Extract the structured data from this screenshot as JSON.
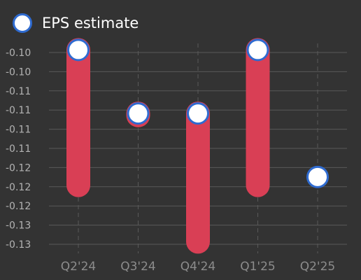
{
  "legend": {
    "label": "EPS estimate"
  },
  "colors": {
    "background": "#333333",
    "bar": "#d93f55",
    "marker_border": "#2f6bd0",
    "marker_fill": "#ffffff",
    "grid": "#595959"
  },
  "chart_data": {
    "type": "bar",
    "series": [
      {
        "name": "EPS estimate",
        "role": "estimate marker"
      }
    ],
    "categories": [
      "Q2'24",
      "Q3'24",
      "Q4'24",
      "Q1'25",
      "Q2'25"
    ],
    "estimates": [
      -0.1,
      -0.11,
      -0.11,
      -0.1,
      -0.12
    ],
    "actuals": [
      -0.1213,
      -0.1103,
      -0.1302,
      -0.1213,
      null
    ],
    "ytick_labels": [
      "-0.10",
      "-0.10",
      "-0.11",
      "-0.11",
      "-0.11",
      "-0.11",
      "-0.12",
      "-0.12",
      "-0.12",
      "-0.13",
      "-0.13"
    ],
    "ylim": [
      -0.1306,
      -0.1004
    ],
    "grid": true,
    "legend_position": "top-left"
  }
}
